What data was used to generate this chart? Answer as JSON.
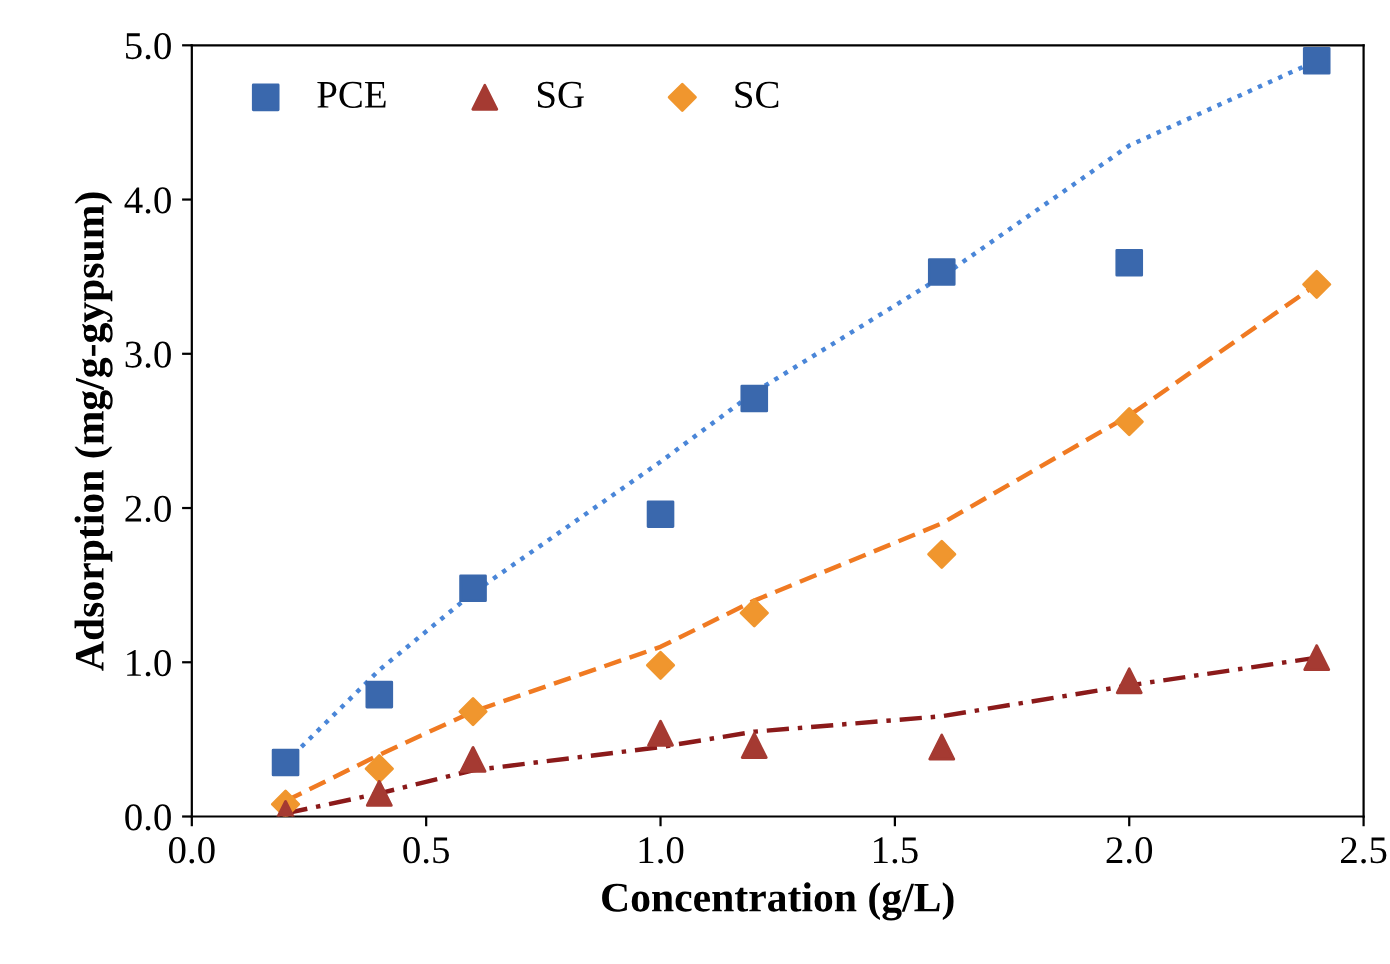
{
  "chart_data": {
    "type": "scatter",
    "xlabel": "Concentration (g/L)",
    "ylabel": "Adsorption (mg/g-gypsum)",
    "xlim": [
      0,
      2.5
    ],
    "xticks": [
      {
        "value": 0,
        "label": "0.0"
      },
      {
        "value": 0.5,
        "label": "0.5"
      },
      {
        "value": 1,
        "label": "1.0"
      },
      {
        "value": 1.5,
        "label": "1.5"
      },
      {
        "value": 2,
        "label": "2.0"
      },
      {
        "value": 2.5,
        "label": "2.5"
      }
    ],
    "ylim": [
      0,
      5
    ],
    "yticks": [
      {
        "value": 0,
        "label": "0.0"
      },
      {
        "value": 1,
        "label": "1.0"
      },
      {
        "value": 2,
        "label": "2.0"
      },
      {
        "value": 3,
        "label": "3.0"
      },
      {
        "value": 4,
        "label": "4.0"
      },
      {
        "value": 5,
        "label": "5.0"
      }
    ],
    "grid": false,
    "legend": "top left",
    "series": [
      {
        "name": "PCE",
        "color": "#3a68ad",
        "marker": "square",
        "x": [
          0.2,
          0.4,
          0.6,
          1.0,
          1.2,
          1.6,
          2.0,
          2.4
        ],
        "values": [
          0.35,
          0.79,
          1.48,
          1.96,
          2.71,
          3.53,
          3.59,
          4.9
        ]
      },
      {
        "name": "SG",
        "color": "#a53a32",
        "marker": "triangle",
        "x": [
          0.2,
          0.4,
          0.6,
          1.0,
          1.2,
          1.6,
          2.0,
          2.4
        ],
        "values": [
          0.02,
          0.15,
          0.37,
          0.54,
          0.46,
          0.45,
          0.88,
          1.03
        ]
      },
      {
        "name": "SC",
        "color": "#f0962e",
        "marker": "diamond",
        "x": [
          0.2,
          0.4,
          0.6,
          1.0,
          1.2,
          1.6,
          2.0,
          2.4
        ],
        "values": [
          0.08,
          0.31,
          0.68,
          0.98,
          1.32,
          1.7,
          2.56,
          3.45
        ]
      },
      {
        "type": "line",
        "color": "#4a86d8",
        "line_style": "dotted",
        "x": [
          0.2,
          0.4,
          0.6,
          1.0,
          1.2,
          1.6,
          2.0,
          2.4
        ],
        "values": [
          0.35,
          0.95,
          1.45,
          2.3,
          2.75,
          3.5,
          4.35,
          4.9
        ]
      },
      {
        "type": "line",
        "color": "#8b1a1a",
        "line_style": "dashdot",
        "x": [
          0.2,
          0.4,
          0.6,
          1.0,
          1.2,
          1.6,
          2.0,
          2.4
        ],
        "values": [
          0.02,
          0.15,
          0.3,
          0.45,
          0.55,
          0.65,
          0.85,
          1.03
        ]
      },
      {
        "type": "line",
        "color": "#f07a22",
        "line_style": "dashed",
        "x": [
          0.2,
          0.4,
          0.6,
          1.0,
          1.2,
          1.6,
          2.0,
          2.4
        ],
        "values": [
          0.1,
          0.4,
          0.68,
          1.1,
          1.4,
          1.9,
          2.6,
          3.45
        ]
      }
    ]
  }
}
